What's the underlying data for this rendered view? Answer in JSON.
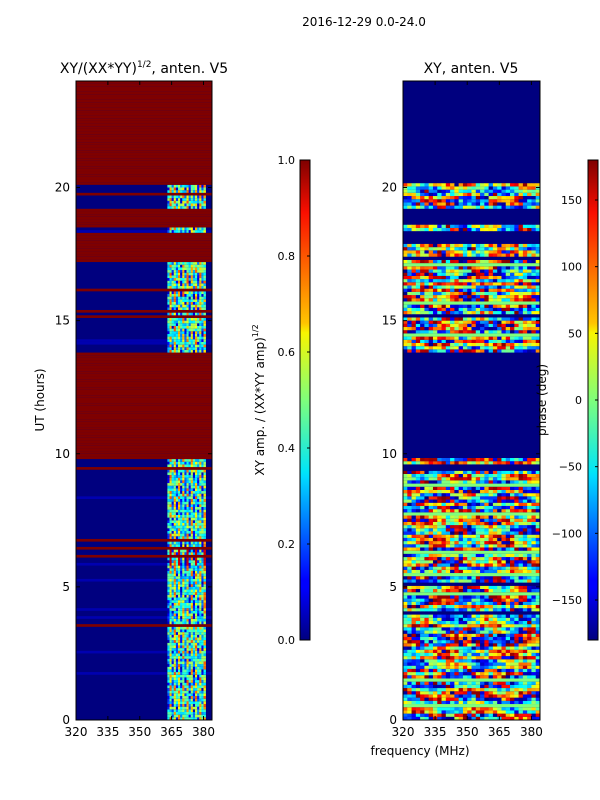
{
  "suptitle": "2016-12-29 0.0-24.0",
  "chart_data": [
    {
      "type": "heatmap",
      "title": "XY/(XX*YY)",
      "title_exp": "1/2",
      "title_suffix": ", anten. V5",
      "xlabel": "",
      "ylabel": "UT (hours)",
      "xlim": [
        320,
        384
      ],
      "ylim": [
        0,
        24
      ],
      "xticks": [
        "320",
        "335",
        "350",
        "365",
        "380"
      ],
      "xtick_values": [
        320,
        335,
        350,
        365,
        380
      ],
      "yticks": [
        "0",
        "5",
        "10",
        "15",
        "20"
      ],
      "ytick_values": [
        0,
        5,
        10,
        15,
        20
      ],
      "colorbar": {
        "label": "XY amp. / (XX*YY amp)",
        "label_exp": "1/2",
        "range": [
          0.0,
          1.0
        ],
        "ticks": [
          "0.0",
          "0.2",
          "0.4",
          "0.6",
          "0.8",
          "1.0"
        ],
        "tick_values": [
          0.0,
          0.2,
          0.4,
          0.6,
          0.8,
          1.0
        ]
      },
      "features": {
        "saturated_blocks_hours": [
          [
            9.8,
            13.8
          ],
          [
            17.2,
            18.3
          ],
          [
            18.5,
            19.2
          ],
          [
            20.1,
            24.0
          ]
        ],
        "active_band_MHz": [
          363,
          381
        ]
      }
    },
    {
      "type": "heatmap",
      "title": "XY, anten. V5",
      "xlabel": "frequency (MHz)",
      "ylabel": "",
      "xlim": [
        320,
        384
      ],
      "ylim": [
        0,
        24
      ],
      "xticks": [
        "320",
        "335",
        "350",
        "365",
        "380"
      ],
      "xtick_values": [
        320,
        335,
        350,
        365,
        380
      ],
      "yticks": [
        "0",
        "5",
        "10",
        "15",
        "20"
      ],
      "ytick_values": [
        0,
        5,
        10,
        15,
        20
      ],
      "colorbar": {
        "label": "phase (deg)",
        "range": [
          -180,
          180
        ],
        "ticks": [
          "−150",
          "−100",
          "−50",
          "0",
          "50",
          "100",
          "150"
        ],
        "tick_values": [
          -150,
          -100,
          -50,
          0,
          50,
          100,
          150
        ]
      },
      "features": {
        "empty_blocks_hours": [
          [
            9.8,
            13.8
          ],
          [
            17.9,
            18.3
          ],
          [
            18.6,
            19.2
          ],
          [
            20.2,
            24.0
          ]
        ]
      }
    }
  ]
}
